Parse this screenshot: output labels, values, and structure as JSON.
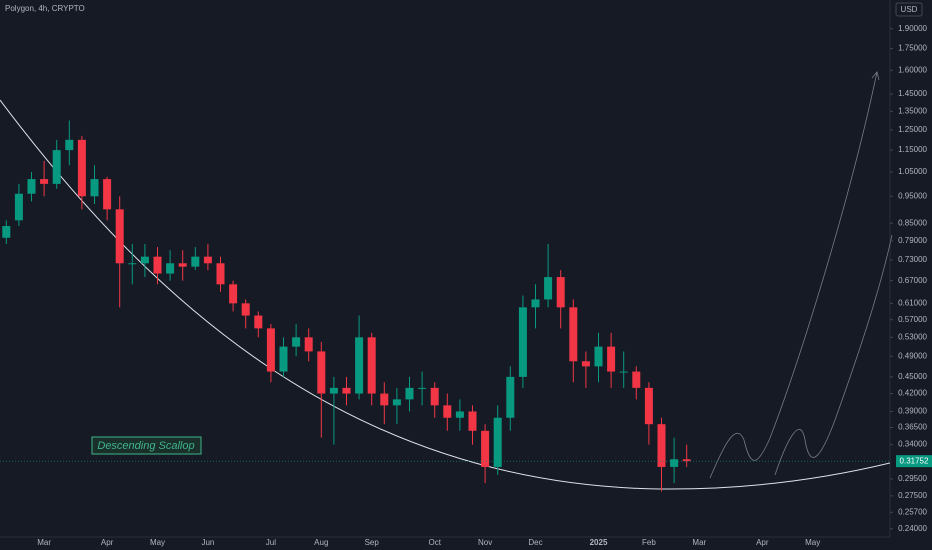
{
  "chart_data": {
    "type": "candlestick",
    "title": "Polygon, 4h, CRYPTO",
    "currency": "USD",
    "annotation": "Descending Scallop",
    "log_scale": true,
    "up_color": "#089981",
    "down_color": "#f23645",
    "categories": [
      null,
      null,
      null,
      "Mar",
      null,
      null,
      null,
      null,
      "Apr",
      null,
      null,
      null,
      "May",
      null,
      null,
      null,
      "Jun",
      null,
      null,
      null,
      null,
      "Jul",
      null,
      null,
      null,
      "Aug",
      null,
      null,
      null,
      "Sep",
      null,
      null,
      null,
      null,
      "Oct",
      null,
      null,
      null,
      "Nov",
      null,
      null,
      null,
      "Dec",
      null,
      null,
      null,
      null,
      "2025",
      null,
      null,
      null,
      "Feb",
      null,
      null,
      null,
      "Mar",
      null,
      null,
      null,
      null,
      "Apr",
      null,
      null,
      null,
      "May",
      null,
      null,
      null,
      null,
      null,
      null
    ],
    "open": [
      0.8,
      0.86,
      0.96,
      1.02,
      1.0,
      1.15,
      1.2,
      0.95,
      1.02,
      0.9,
      0.72,
      0.72,
      0.74,
      0.69,
      0.72,
      0.71,
      0.74,
      0.72,
      0.66,
      0.61,
      0.58,
      0.55,
      0.46,
      0.51,
      0.53,
      0.5,
      0.42,
      0.43,
      0.42,
      0.53,
      0.42,
      0.4,
      0.41,
      0.43,
      0.43,
      0.4,
      0.38,
      0.39,
      0.36,
      0.31,
      0.38,
      0.45,
      0.6,
      0.62,
      0.68,
      0.6,
      0.48,
      0.47,
      0.51,
      0.46,
      0.46,
      0.43,
      0.37,
      0.31,
      0.32,
      null,
      null,
      null,
      null,
      null,
      null,
      null,
      null,
      null,
      null,
      null,
      null,
      null,
      null,
      null,
      null
    ],
    "high": [
      0.86,
      1.0,
      1.05,
      1.1,
      1.2,
      1.3,
      1.22,
      1.08,
      1.03,
      0.95,
      0.78,
      0.78,
      0.77,
      0.76,
      0.76,
      0.77,
      0.78,
      0.74,
      0.67,
      0.62,
      0.59,
      0.56,
      0.53,
      0.56,
      0.55,
      0.52,
      0.45,
      0.45,
      0.58,
      0.54,
      0.44,
      0.43,
      0.45,
      0.46,
      0.44,
      0.42,
      0.41,
      0.4,
      0.37,
      0.4,
      0.47,
      0.63,
      0.66,
      0.78,
      0.7,
      0.62,
      0.5,
      0.54,
      0.54,
      0.5,
      0.47,
      0.44,
      0.38,
      0.35,
      0.34,
      null,
      null,
      null,
      null,
      null,
      null,
      null,
      null,
      null,
      null,
      null,
      null,
      null,
      null,
      null,
      null
    ],
    "low": [
      0.78,
      0.84,
      0.93,
      0.95,
      0.98,
      1.08,
      0.9,
      0.92,
      0.86,
      0.6,
      0.66,
      0.68,
      0.66,
      0.67,
      0.67,
      0.7,
      0.7,
      0.64,
      0.59,
      0.55,
      0.53,
      0.44,
      0.45,
      0.49,
      0.48,
      0.35,
      0.34,
      0.4,
      0.41,
      0.4,
      0.37,
      0.37,
      0.39,
      0.4,
      0.38,
      0.36,
      0.36,
      0.34,
      0.29,
      0.3,
      0.36,
      0.43,
      0.55,
      0.6,
      0.55,
      0.44,
      0.43,
      0.44,
      0.43,
      0.43,
      0.41,
      0.34,
      0.28,
      0.29,
      0.31,
      null,
      null,
      null,
      null,
      null,
      null,
      null,
      null,
      null,
      null,
      null,
      null,
      null,
      null,
      null,
      null
    ],
    "close": [
      0.84,
      0.96,
      1.02,
      1.0,
      1.15,
      1.2,
      0.95,
      1.02,
      0.9,
      0.72,
      0.72,
      0.74,
      0.69,
      0.72,
      0.71,
      0.74,
      0.72,
      0.66,
      0.61,
      0.58,
      0.55,
      0.46,
      0.51,
      0.53,
      0.5,
      0.42,
      0.43,
      0.42,
      0.53,
      0.42,
      0.4,
      0.41,
      0.43,
      0.43,
      0.4,
      0.38,
      0.39,
      0.36,
      0.31,
      0.38,
      0.45,
      0.6,
      0.62,
      0.68,
      0.6,
      0.48,
      0.47,
      0.51,
      0.46,
      0.46,
      0.43,
      0.37,
      0.31,
      0.32,
      0.31752,
      null,
      null,
      null,
      null,
      null,
      null,
      null,
      null,
      null,
      null,
      null,
      null,
      null,
      null,
      null,
      null
    ],
    "ylim": [
      0.232,
      2.14
    ],
    "yticks": [
      {
        "value": 1.9,
        "label": "1.90000"
      },
      {
        "value": 1.75,
        "label": "1.75000"
      },
      {
        "value": 1.6,
        "label": "1.60000"
      },
      {
        "value": 1.45,
        "label": "1.45000"
      },
      {
        "value": 1.35,
        "label": "1.35000"
      },
      {
        "value": 1.25,
        "label": "1.25000"
      },
      {
        "value": 1.15,
        "label": "1.15000"
      },
      {
        "value": 1.05,
        "label": "1.05000"
      },
      {
        "value": 0.95,
        "label": "0.95000"
      },
      {
        "value": 0.85,
        "label": "0.85000"
      },
      {
        "value": 0.79,
        "label": "0.79000"
      },
      {
        "value": 0.73,
        "label": "0.73000"
      },
      {
        "value": 0.67,
        "label": "0.67000"
      },
      {
        "value": 0.61,
        "label": "0.61000"
      },
      {
        "value": 0.57,
        "label": "0.57000"
      },
      {
        "value": 0.53,
        "label": "0.53000"
      },
      {
        "value": 0.49,
        "label": "0.49000"
      },
      {
        "value": 0.45,
        "label": "0.45000"
      },
      {
        "value": 0.42,
        "label": "0.42000"
      },
      {
        "value": 0.39,
        "label": "0.39000"
      },
      {
        "value": 0.365,
        "label": "0.36500"
      },
      {
        "value": 0.34,
        "label": "0.34000"
      },
      {
        "value": 0.295,
        "label": "0.29500"
      },
      {
        "value": 0.275,
        "label": "0.27500"
      },
      {
        "value": 0.257,
        "label": "0.25700"
      },
      {
        "value": 0.24,
        "label": "0.24000"
      }
    ]
  }
}
